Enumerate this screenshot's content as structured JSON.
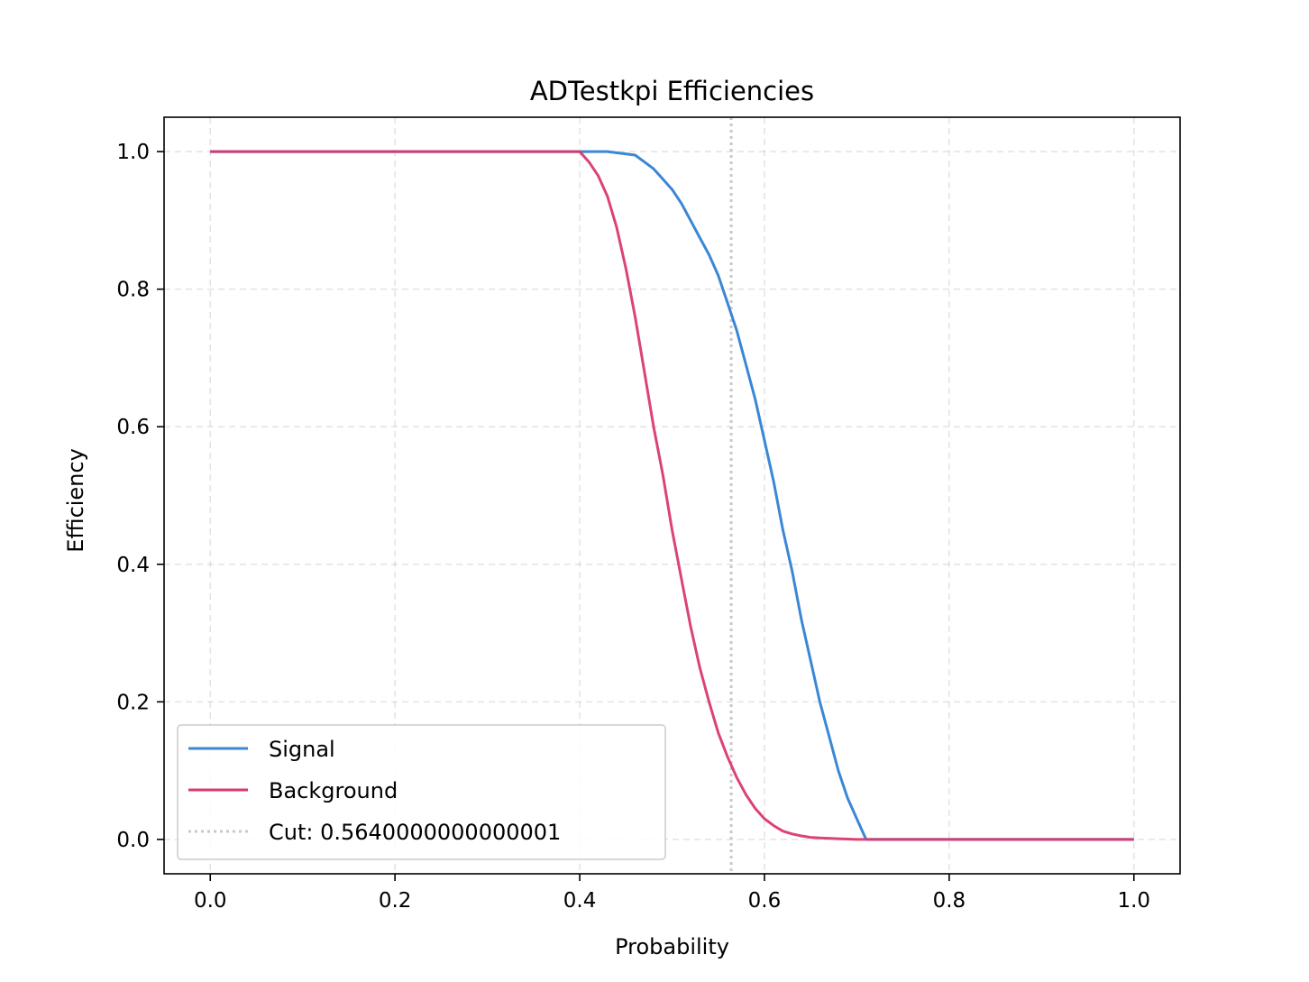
{
  "chart_data": {
    "type": "line",
    "title": "ADTestkpi Efficiencies",
    "xlabel": "Probability",
    "ylabel": "Efficiency",
    "xlim": [
      -0.05,
      1.05
    ],
    "ylim": [
      -0.05,
      1.05
    ],
    "xticks": [
      0.0,
      0.2,
      0.4,
      0.6,
      0.8,
      1.0
    ],
    "xtick_labels": [
      "0.0",
      "0.2",
      "0.4",
      "0.6",
      "0.8",
      "1.0"
    ],
    "yticks": [
      0.0,
      0.2,
      0.4,
      0.6,
      0.8,
      1.0
    ],
    "ytick_labels": [
      "0.0",
      "0.2",
      "0.4",
      "0.6",
      "0.8",
      "1.0"
    ],
    "grid": true,
    "legend_position": "lower-left",
    "cut": {
      "label": "Cut: 0.5640000000000001",
      "x": 0.564,
      "color": "#c8c8c8"
    },
    "series": [
      {
        "name": "Signal",
        "color": "#3a87d6",
        "x": [
          0.0,
          0.4,
          0.43,
          0.46,
          0.47,
          0.48,
          0.49,
          0.5,
          0.51,
          0.52,
          0.53,
          0.54,
          0.55,
          0.56,
          0.57,
          0.58,
          0.59,
          0.6,
          0.61,
          0.62,
          0.63,
          0.64,
          0.65,
          0.66,
          0.67,
          0.68,
          0.69,
          0.7,
          0.705,
          0.71,
          0.711,
          1.0
        ],
        "values": [
          1.0,
          1.0,
          1.0,
          0.995,
          0.985,
          0.975,
          0.96,
          0.945,
          0.925,
          0.9,
          0.875,
          0.85,
          0.82,
          0.78,
          0.74,
          0.69,
          0.64,
          0.58,
          0.52,
          0.45,
          0.39,
          0.32,
          0.26,
          0.2,
          0.15,
          0.1,
          0.06,
          0.03,
          0.015,
          0.0,
          0.0,
          0.0
        ]
      },
      {
        "name": "Background",
        "color": "#d93a6a",
        "x": [
          0.0,
          0.4,
          0.41,
          0.42,
          0.43,
          0.44,
          0.45,
          0.46,
          0.47,
          0.48,
          0.49,
          0.5,
          0.51,
          0.52,
          0.53,
          0.54,
          0.55,
          0.56,
          0.57,
          0.58,
          0.59,
          0.6,
          0.61,
          0.62,
          0.63,
          0.64,
          0.65,
          0.66,
          0.68,
          0.7,
          0.72,
          1.0
        ],
        "values": [
          1.0,
          1.0,
          0.985,
          0.965,
          0.935,
          0.89,
          0.83,
          0.76,
          0.68,
          0.6,
          0.53,
          0.45,
          0.38,
          0.31,
          0.25,
          0.2,
          0.155,
          0.12,
          0.09,
          0.065,
          0.045,
          0.03,
          0.02,
          0.012,
          0.008,
          0.005,
          0.003,
          0.002,
          0.001,
          0.0,
          0.0,
          0.0
        ]
      }
    ]
  }
}
